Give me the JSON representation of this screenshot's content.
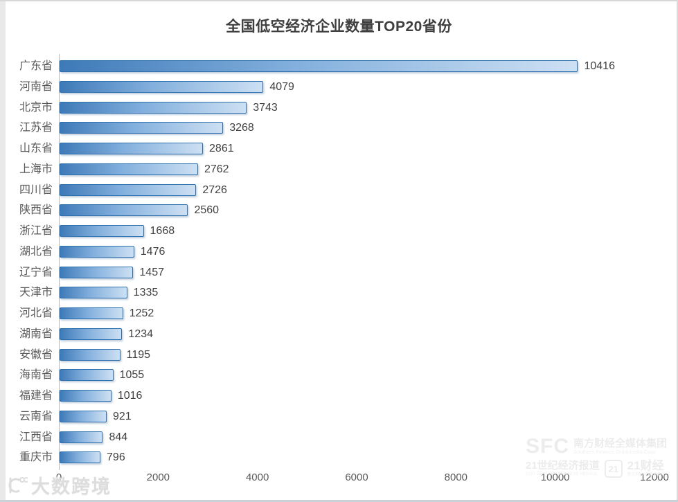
{
  "page": {
    "kind": "static-chart-image"
  },
  "chart_data": {
    "type": "bar",
    "orientation": "horizontal",
    "title": "全国低空经济企业数量TOP20省份",
    "categories": [
      "广东省",
      "河南省",
      "北京市",
      "江苏省",
      "山东省",
      "上海市",
      "四川省",
      "陕西省",
      "浙江省",
      "湖北省",
      "辽宁省",
      "天津市",
      "河北省",
      "湖南省",
      "安徽省",
      "海南省",
      "福建省",
      "云南省",
      "江西省",
      "重庆市"
    ],
    "values": [
      10416,
      4079,
      3743,
      3268,
      2861,
      2762,
      2726,
      2560,
      1668,
      1476,
      1457,
      1335,
      1252,
      1234,
      1195,
      1055,
      1016,
      921,
      844,
      796
    ],
    "xlim": [
      0,
      12000
    ],
    "x_ticks": [
      0,
      2000,
      4000,
      6000,
      8000,
      10000,
      12000
    ],
    "grid": false,
    "legend": "none",
    "data_labels": true,
    "colors": {
      "bar_gradient_start": "#3e7ab8",
      "bar_gradient_mid": "#82afdd",
      "bar_gradient_end": "#cde0f3",
      "bar_border": "#2e6fad",
      "title_text": "#3f3f3f",
      "category_text": "#595959",
      "value_text": "#404040",
      "tick_text": "#595959",
      "axis_line": "#b8b8b8"
    }
  },
  "watermarks": {
    "left": {
      "logo": "dashukuajing-logo",
      "text": "大数跨境"
    },
    "right": {
      "sfc": "SFC",
      "sfc_cn": "南方财经全媒体集团",
      "sfc_en": "Southern Finance Omnimedia Corp",
      "herald_cn": "21世纪经济报道",
      "herald_en": "21ST CENTURY BUSINESS HERALD",
      "box21": "21",
      "cj21": "21财经",
      "cj21_sub": "南方财经全媒体集团"
    }
  }
}
